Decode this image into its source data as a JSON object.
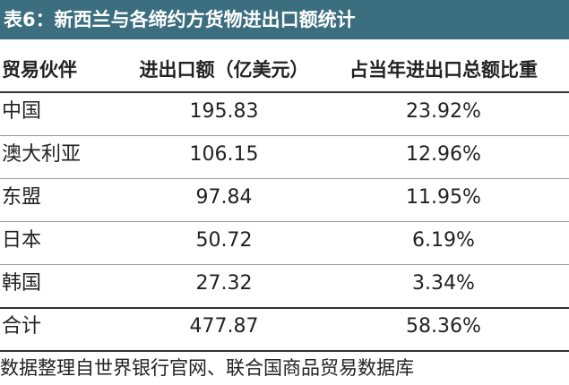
{
  "title": "表6：新西兰与各缔约方货物进出口额统计",
  "table": {
    "header": [
      "贸易伙伴",
      "进出口额（亿美元）",
      "占当年进出口总额比重"
    ],
    "rows": [
      [
        "中国",
        "195.83",
        "23.92%"
      ],
      [
        "澳大利亚",
        "106.15",
        "12.96%"
      ],
      [
        "东盟",
        "97.84",
        "11.95%"
      ],
      [
        "日本",
        "50.72",
        "6.19%"
      ],
      [
        "韩国",
        "27.32",
        "3.34%"
      ],
      [
        "合计",
        "477.87",
        "58.36%"
      ]
    ]
  },
  "source": "数据整理自世界银行官网、联合国商品贸易数据库"
}
